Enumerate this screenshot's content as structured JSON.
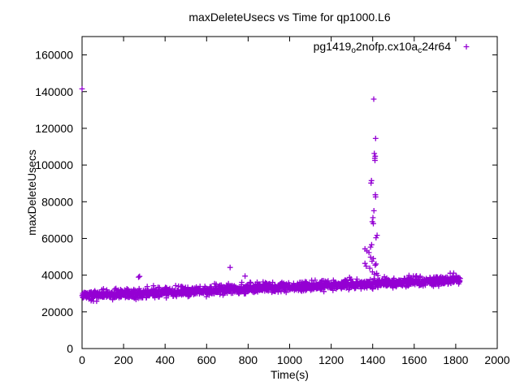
{
  "chart_data": {
    "type": "scatter",
    "title": "maxDeleteUsecs vs Time for qp1000.L6",
    "xlabel": "Time(s)",
    "ylabel": "maxDeleteUsecs",
    "xlim": [
      0,
      2000
    ],
    "ylim": [
      0,
      170000
    ],
    "xticks": [
      0,
      200,
      400,
      600,
      800,
      1000,
      1200,
      1400,
      1600,
      1800,
      2000
    ],
    "yticks": [
      0,
      20000,
      40000,
      60000,
      80000,
      100000,
      120000,
      140000,
      160000
    ],
    "grid": false,
    "marker": "plus",
    "color": "#9400D3",
    "legend": {
      "position": "top-right-inside",
      "label_parts": [
        {
          "text": "pg1419",
          "subscript": false
        },
        {
          "text": "o",
          "subscript": true
        },
        {
          "text": "2nofp.cx10a",
          "subscript": false
        },
        {
          "text": "c",
          "subscript": true
        },
        {
          "text": "24r64",
          "subscript": false
        }
      ]
    },
    "series": [
      {
        "name": "pg1419o2nofp.cx10ac24r64",
        "band": {
          "generator": "seeded-noise",
          "seed": 42,
          "n": 1500,
          "x_start": 0,
          "x_end": 1822,
          "y_at_x_start": 28600,
          "y_at_x_end": 37400,
          "sigma": 1150,
          "burst_probability": 0.05,
          "burst_max": 3400
        },
        "outlier_points": [
          [
            0,
            141500
          ],
          [
            272,
            38900
          ],
          [
            277,
            39300
          ],
          [
            713,
            44200
          ],
          [
            785,
            39500
          ]
        ],
        "spike_points": [
          [
            1405,
            135900
          ],
          [
            1414,
            114500
          ],
          [
            1408,
            106300
          ],
          [
            1412,
            104800
          ],
          [
            1410,
            103700
          ],
          [
            1411,
            102500
          ],
          [
            1394,
            91500
          ],
          [
            1392,
            90200
          ],
          [
            1413,
            83800
          ],
          [
            1414,
            82600
          ],
          [
            1406,
            75100
          ],
          [
            1401,
            71300
          ],
          [
            1398,
            69100
          ],
          [
            1403,
            68100
          ],
          [
            1421,
            61700
          ],
          [
            1416,
            60400
          ],
          [
            1395,
            56600
          ],
          [
            1390,
            55300
          ],
          [
            1363,
            54300
          ],
          [
            1372,
            53200
          ],
          [
            1382,
            52300
          ],
          [
            1390,
            49800
          ],
          [
            1403,
            49000
          ],
          [
            1397,
            47600
          ],
          [
            1363,
            46400
          ],
          [
            1369,
            44900
          ],
          [
            1412,
            45400
          ],
          [
            1416,
            46100
          ],
          [
            1386,
            43800
          ],
          [
            1399,
            41800
          ],
          [
            1419,
            41000
          ],
          [
            1408,
            40500
          ],
          [
            1425,
            39800
          ]
        ]
      }
    ]
  }
}
